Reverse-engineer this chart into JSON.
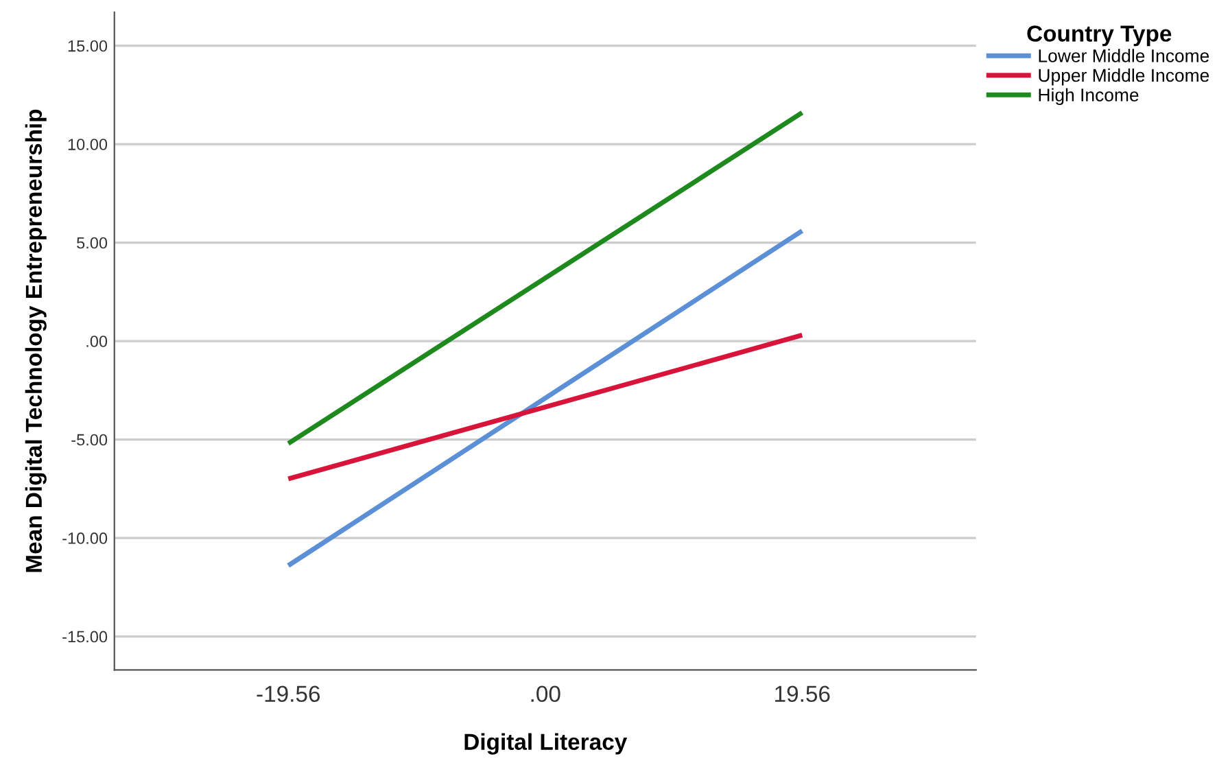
{
  "chart_data": {
    "type": "line",
    "xlabel": "Digital Literacy",
    "ylabel": "Mean Digital Technology Entrepreneurship",
    "legend_title": "Country Type",
    "x": [
      -19.56,
      19.56
    ],
    "series": [
      {
        "name": "Lower Middle Income",
        "color": "#5b8fd6",
        "values": [
          -11.4,
          5.6
        ]
      },
      {
        "name": "Upper Middle Income",
        "color": "#d9143a",
        "values": [
          -7.0,
          0.3
        ]
      },
      {
        "name": "High Income",
        "color": "#1e8a1e",
        "values": [
          -5.2,
          11.6
        ]
      }
    ],
    "xlim": [
      -32.8,
      32.8
    ],
    "xticks": [
      {
        "value": -19.56,
        "label": "-19.56"
      },
      {
        "value": 0,
        "label": ".00"
      },
      {
        "value": 19.56,
        "label": "19.56"
      }
    ],
    "ylim": [
      -16.7,
      16.7
    ],
    "yticks": [
      {
        "value": -15,
        "label": "-15.00"
      },
      {
        "value": -10,
        "label": "-10.00"
      },
      {
        "value": -5,
        "label": "-5.00"
      },
      {
        "value": 0,
        "label": ".00"
      },
      {
        "value": 5,
        "label": "5.00"
      },
      {
        "value": 10,
        "label": "10.00"
      },
      {
        "value": 15,
        "label": "15.00"
      }
    ],
    "grid": "y",
    "legend": "top right",
    "marker": "none",
    "line_style": "solid"
  }
}
